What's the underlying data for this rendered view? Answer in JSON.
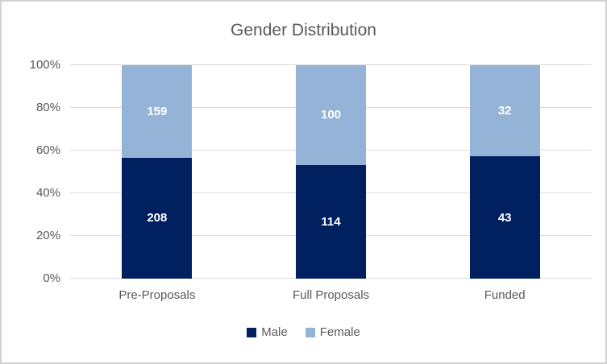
{
  "chart_data": {
    "type": "bar",
    "subtype": "stacked-100-percent",
    "title": "Gender Distribution",
    "categories": [
      "Pre-Proposals",
      "Full Proposals",
      "Funded"
    ],
    "series": [
      {
        "name": "Male",
        "color": "#002060",
        "values": [
          208,
          114,
          43
        ]
      },
      {
        "name": "Female",
        "color": "#95b3d7",
        "values": [
          159,
          100,
          32
        ]
      }
    ],
    "y_axis": {
      "ticks": [
        "0%",
        "20%",
        "40%",
        "60%",
        "80%",
        "100%"
      ],
      "min": 0,
      "max": 1,
      "grid": true
    },
    "legend_position": "bottom",
    "data_labels": "inside-center",
    "colors": {
      "title_text": "#595959",
      "axis_text": "#595959",
      "gridline": "#d9d9d9",
      "chart_border": "#d2d2d2",
      "data_label_text": "#ffffff"
    }
  }
}
